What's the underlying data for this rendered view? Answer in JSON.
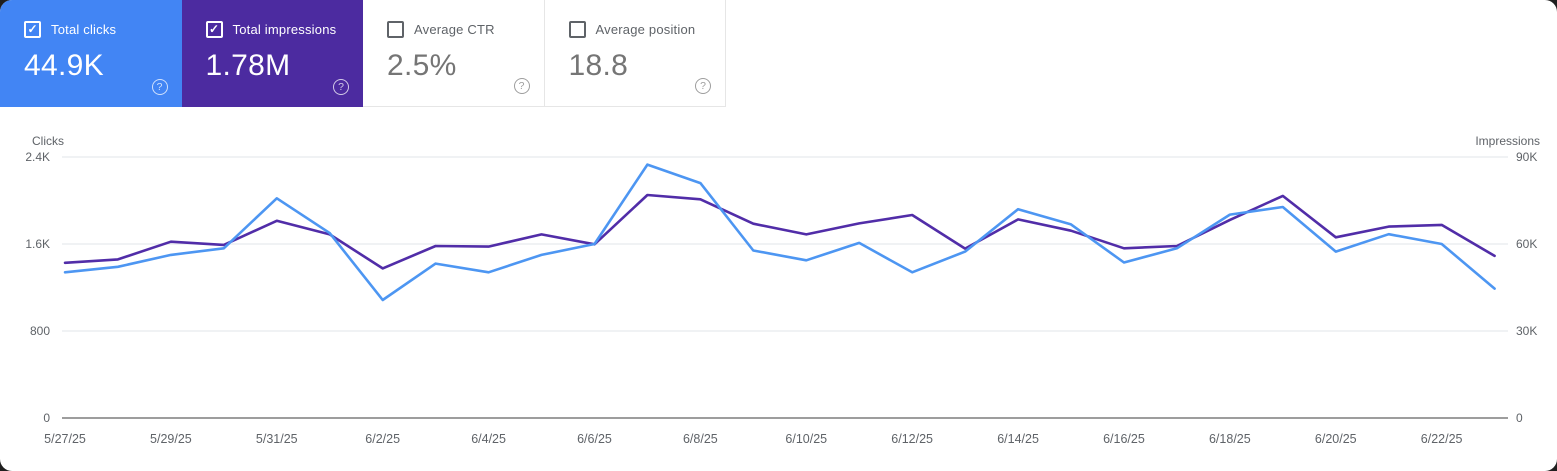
{
  "icons": {
    "check": "✓",
    "help": "?"
  },
  "colors": {
    "clicks_accent": "#4285f4",
    "impressions_accent": "#4c2ba0",
    "clicks_line": "#4d96f2",
    "impressions_line": "#512da8",
    "gridline": "#e8eaed",
    "axis_line": "#8f8f8f",
    "tick_text": "#5f6368",
    "page_background": "#1f1f1f"
  },
  "metric_cards": [
    {
      "label": "Total clicks",
      "value": "44.9K",
      "checked": true,
      "background": "#4285f4"
    },
    {
      "label": "Total impressions",
      "value": "1.78M",
      "checked": true,
      "background": "#4c2ba0"
    },
    {
      "label": "Average CTR",
      "value": "2.5%",
      "checked": false,
      "background": "#ffffff"
    },
    {
      "label": "Average position",
      "value": "18.8",
      "checked": false,
      "background": "#ffffff"
    }
  ],
  "chart_data": {
    "type": "line",
    "x": [
      "5/27/25",
      "5/28/25",
      "5/29/25",
      "5/30/25",
      "5/31/25",
      "6/1/25",
      "6/2/25",
      "6/3/25",
      "6/4/25",
      "6/5/25",
      "6/6/25",
      "6/7/25",
      "6/8/25",
      "6/9/25",
      "6/10/25",
      "6/11/25",
      "6/12/25",
      "6/13/25",
      "6/14/25",
      "6/15/25",
      "6/16/25",
      "6/17/25",
      "6/18/25",
      "6/19/25",
      "6/20/25",
      "6/21/25",
      "6/22/25",
      "6/23/25"
    ],
    "x_tick_labels": [
      "5/27/25",
      "5/29/25",
      "5/31/25",
      "6/2/25",
      "6/4/25",
      "6/6/25",
      "6/8/25",
      "6/10/25",
      "6/12/25",
      "6/14/25",
      "6/16/25",
      "6/18/25",
      "6/20/25",
      "6/22/25"
    ],
    "series": [
      {
        "name": "Impressions",
        "axis": "right",
        "color": "#512da8",
        "values": [
          53500,
          54700,
          60800,
          59700,
          68000,
          63300,
          51600,
          59300,
          59100,
          63300,
          59900,
          76900,
          75400,
          67000,
          63300,
          67100,
          70000,
          58400,
          68500,
          64600,
          58500,
          59300,
          68300,
          76600,
          62300,
          66000,
          66600,
          55900
        ]
      },
      {
        "name": "Clicks",
        "axis": "left",
        "color": "#4d96f2",
        "values": [
          1340,
          1390,
          1500,
          1560,
          2020,
          1700,
          1085,
          1420,
          1340,
          1500,
          1600,
          2330,
          2160,
          1540,
          1450,
          1610,
          1340,
          1530,
          1920,
          1780,
          1430,
          1560,
          1870,
          1940,
          1530,
          1690,
          1600,
          1190
        ]
      }
    ],
    "left_axis": {
      "label": "Clicks",
      "max": 2400,
      "ticks": [
        {
          "value": 2400,
          "label": "2.4K"
        },
        {
          "value": 1600,
          "label": "1.6K"
        },
        {
          "value": 800,
          "label": "800"
        },
        {
          "value": 0,
          "label": "0"
        }
      ]
    },
    "right_axis": {
      "label": "Impressions",
      "max": 90000,
      "ticks": [
        {
          "value": 90000,
          "label": "90K"
        },
        {
          "value": 60000,
          "label": "60K"
        },
        {
          "value": 30000,
          "label": "30K"
        },
        {
          "value": 0,
          "label": "0"
        }
      ]
    },
    "grid": true,
    "legend_position": "none"
  }
}
